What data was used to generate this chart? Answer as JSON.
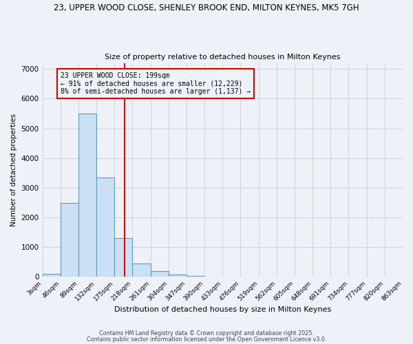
{
  "title1": "23, UPPER WOOD CLOSE, SHENLEY BROOK END, MILTON KEYNES, MK5 7GH",
  "title2": "Size of property relative to detached houses in Milton Keynes",
  "xlabel": "Distribution of detached houses by size in Milton Keynes",
  "ylabel": "Number of detached properties",
  "bin_edges": [
    3,
    46,
    89,
    132,
    175,
    218,
    261,
    304,
    347,
    390,
    433,
    476,
    519,
    562,
    605,
    648,
    691,
    734,
    777,
    820,
    863
  ],
  "bar_heights": [
    100,
    2500,
    5500,
    3350,
    1300,
    450,
    200,
    80,
    30,
    10,
    5,
    3,
    2,
    1,
    1,
    0,
    0,
    0,
    0,
    0
  ],
  "bar_facecolor": "#cce0f5",
  "bar_edgecolor": "#5599cc",
  "grid_color": "#cccccc",
  "background_color": "#eef2f8",
  "property_line_x": 199,
  "property_line_color": "#cc0000",
  "annotation_text": "23 UPPER WOOD CLOSE: 199sqm\n← 91% of detached houses are smaller (12,229)\n8% of semi-detached houses are larger (1,137) →",
  "ylim": [
    0,
    7200
  ],
  "yticks": [
    0,
    1000,
    2000,
    3000,
    4000,
    5000,
    6000,
    7000
  ],
  "footer1": "Contains HM Land Registry data © Crown copyright and database right 2025.",
  "footer2": "Contains public sector information licensed under the Open Government Licence v3.0."
}
